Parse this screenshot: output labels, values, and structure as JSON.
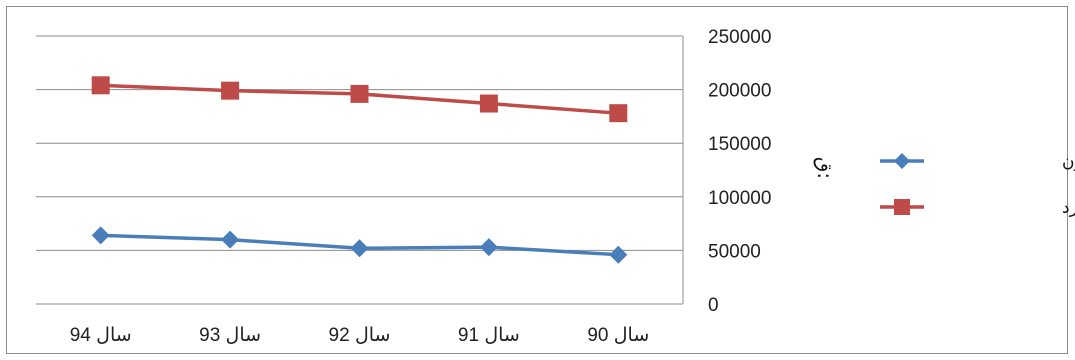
{
  "chart_data": {
    "type": "line",
    "categories": [
      "سال 94",
      "سال 93",
      "سال 92",
      "سال 91",
      "سال 90"
    ],
    "series": [
      {
        "name": "جمعیت فعال زن",
        "color": "#4a7ebb",
        "marker": "diamond",
        "values": [
          64000,
          60000,
          52000,
          53000,
          46000
        ]
      },
      {
        "name": "جمعیت فعال مرد",
        "color": "#be4b48",
        "marker": "square",
        "values": [
          204000,
          199000,
          196000,
          187000,
          178000
        ]
      }
    ],
    "y_ticks": [
      "250000",
      "200000",
      "150000",
      "100000",
      "50000",
      "0"
    ],
    "ylim": [
      0,
      250000
    ],
    "y_axis_position": "right",
    "grid": true,
    "legend_position": "right",
    "ylabel_glyph": "ق:"
  }
}
